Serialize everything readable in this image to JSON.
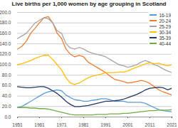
{
  "chart_data": {
    "type": "line",
    "title": "Live births per 1,000 women by age grouping in Scotland",
    "x": [
      1951,
      1953,
      1955,
      1957,
      1959,
      1961,
      1963,
      1965,
      1967,
      1969,
      1971,
      1973,
      1975,
      1977,
      1979,
      1981,
      1983,
      1985,
      1987,
      1989,
      1991,
      1993,
      1995,
      1997,
      1999,
      2001,
      2003,
      2005,
      2007,
      2009,
      2011,
      2013,
      2015,
      2017,
      2019,
      2021
    ],
    "series": [
      {
        "name": "16-19",
        "color": "#5b9bd5",
        "values": [
          18,
          20,
          25,
          30,
          35,
          40,
          45,
          48,
          50,
          52,
          50,
          42,
          37,
          33,
          32,
          30,
          30,
          32,
          33,
          35,
          35,
          33,
          30,
          30,
          30,
          28,
          28,
          28,
          28,
          26,
          22,
          18,
          14,
          12,
          11,
          10
        ]
      },
      {
        "name": "20-24",
        "color": "#ed7d31",
        "values": [
          130,
          135,
          145,
          160,
          170,
          180,
          190,
          192,
          180,
          160,
          150,
          130,
          120,
          115,
          118,
          115,
          105,
          100,
          95,
          90,
          85,
          78,
          72,
          70,
          68,
          65,
          66,
          68,
          70,
          68,
          64,
          58,
          52,
          48,
          45,
          42
        ]
      },
      {
        "name": "25-29",
        "color": "#a5a5a5",
        "values": [
          150,
          155,
          160,
          170,
          180,
          185,
          190,
          188,
          180,
          165,
          160,
          140,
          132,
          130,
          133,
          130,
          125,
          122,
          120,
          118,
          115,
          110,
          105,
          100,
          98,
          95,
          97,
          100,
          105,
          108,
          105,
          100,
          97,
          92,
          88,
          85
        ]
      },
      {
        "name": "30-34",
        "color": "#ffc000",
        "values": [
          100,
          102,
          105,
          108,
          112,
          115,
          118,
          118,
          110,
          100,
          90,
          75,
          65,
          62,
          65,
          70,
          75,
          78,
          80,
          82,
          85,
          85,
          85,
          86,
          86,
          88,
          92,
          95,
          98,
          102,
          104,
          102,
          103,
          100,
          98,
          100
        ]
      },
      {
        "name": "35-39",
        "color": "#203864",
        "values": [
          58,
          57,
          56,
          56,
          57,
          58,
          58,
          55,
          50,
          45,
          38,
          30,
          24,
          20,
          20,
          21,
          22,
          24,
          26,
          28,
          30,
          30,
          31,
          32,
          34,
          37,
          40,
          43,
          47,
          52,
          55,
          56,
          57,
          56,
          52,
          55
        ]
      },
      {
        "name": "40-44",
        "color": "#70ad47",
        "values": [
          18,
          18,
          18,
          17,
          17,
          16,
          16,
          15,
          13,
          11,
          9,
          7,
          5,
          4,
          4,
          4,
          4,
          4,
          5,
          5,
          5,
          6,
          6,
          6,
          7,
          7,
          8,
          9,
          10,
          11,
          12,
          12,
          13,
          13,
          13,
          14
        ]
      }
    ],
    "xlim": [
      1951,
      2021
    ],
    "xticks": [
      1951,
      1961,
      1971,
      1981,
      1991,
      2001,
      2011,
      2021
    ],
    "ylim": [
      0,
      200
    ],
    "yticks": [
      {
        "value": 0,
        "label": "0.0"
      },
      {
        "value": 20,
        "label": "20.0"
      },
      {
        "value": 40,
        "label": "40.0"
      },
      {
        "value": 60,
        "label": "60.0"
      },
      {
        "value": 80,
        "label": "80.0"
      },
      {
        "value": 100,
        "label": "100.0"
      },
      {
        "value": 120,
        "label": "120.0"
      },
      {
        "value": 140,
        "label": "140.0"
      },
      {
        "value": 160,
        "label": "160.0"
      },
      {
        "value": 180,
        "label": "180.0"
      },
      {
        "value": 200,
        "label": "200.0"
      }
    ],
    "grid": true,
    "legend": "top-right"
  }
}
